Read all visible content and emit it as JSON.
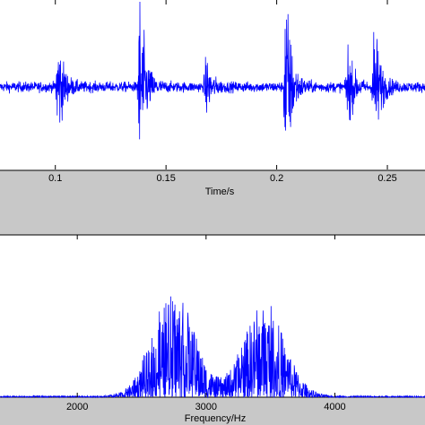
{
  "colors": {
    "figure_background": "#c8c8c8",
    "axes_background": "#ffffff",
    "series": "#0000ff",
    "axis": "#000000"
  },
  "chart_data": [
    {
      "type": "line",
      "panel": "time",
      "xlabel": "Time/s",
      "ylabel": "",
      "title": "",
      "xlim": [
        0.075,
        0.267
      ],
      "ylim": [
        -1.0,
        1.0
      ],
      "x_ticks": [
        0.1,
        0.15,
        0.2,
        0.25
      ],
      "x_tick_labels": [
        "0.1",
        "0.15",
        "0.2",
        "0.25"
      ],
      "grid": false,
      "noise_level": 0.04,
      "events": [
        {
          "t": 0.101,
          "amp": 0.45
        },
        {
          "t": 0.138,
          "amp": 0.78
        },
        {
          "t": 0.168,
          "amp": 0.22
        },
        {
          "t": 0.204,
          "amp": 0.88
        },
        {
          "t": 0.232,
          "amp": 0.35
        },
        {
          "t": 0.244,
          "amp": 0.6
        }
      ],
      "series": [
        {
          "values": []
        }
      ]
    },
    {
      "type": "line",
      "panel": "spectrum",
      "xlabel": "Frequency/Hz",
      "ylabel": "",
      "title": "",
      "xlim": [
        1400,
        4700
      ],
      "ylim": [
        0,
        1.0
      ],
      "x_ticks": [
        2000,
        3000,
        4000
      ],
      "x_tick_labels": [
        "2000",
        "3000",
        "4000"
      ],
      "grid": false,
      "bands": [
        {
          "center": 2750,
          "width": 230,
          "peak": 0.8
        },
        {
          "center": 3450,
          "width": 230,
          "peak": 0.7
        }
      ],
      "series": [
        {
          "values": []
        }
      ]
    }
  ]
}
